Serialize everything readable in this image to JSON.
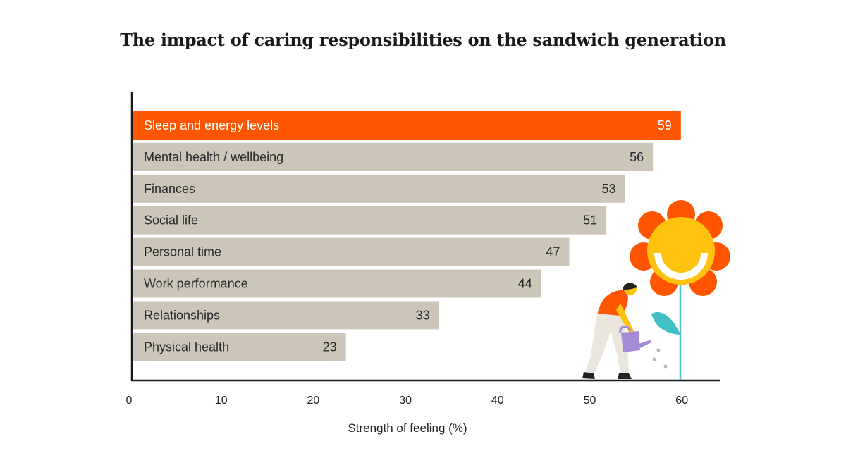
{
  "chart_data": {
    "type": "bar",
    "orientation": "horizontal",
    "title": "The impact of caring responsibilities on the sandwich generation",
    "categories": [
      "Sleep and energy levels",
      "Mental health / wellbeing",
      "Finances",
      "Social life",
      "Personal time",
      "Work performance",
      "Relationships",
      "Physical health"
    ],
    "values": [
      59,
      56,
      53,
      51,
      47,
      44,
      33,
      23
    ],
    "highlighted": "Sleep and energy levels",
    "xlabel": "Strength of feeling (%)",
    "ylabel": "",
    "xlim": [
      0,
      63
    ],
    "xticks": [
      0,
      10,
      20,
      30,
      40,
      50,
      60
    ],
    "grid": false,
    "data_labels": true,
    "colors": {
      "highlight": "#FF5500",
      "default": "#CCC6B9",
      "axis": "#1a1a1a"
    }
  },
  "illustration": "person-watering-smiling-flower"
}
